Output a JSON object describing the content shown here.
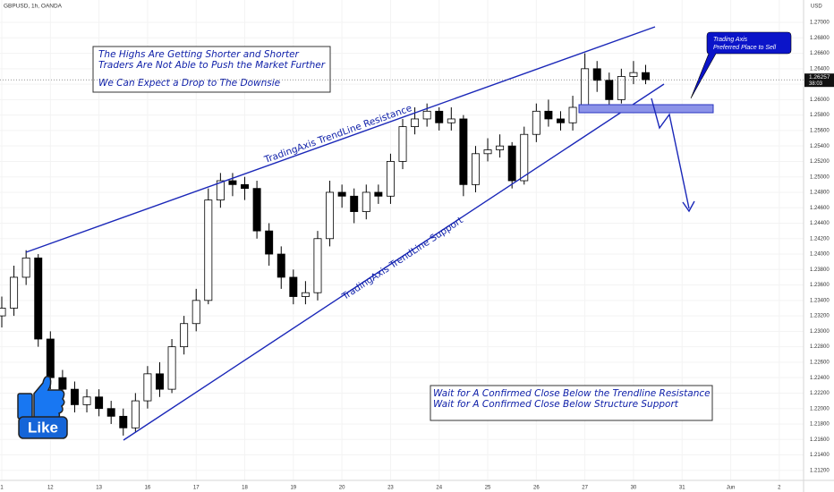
{
  "chart_data": {
    "type": "candlestick",
    "symbol": "GBPUSD, 1h, OANDA",
    "currency": "USD",
    "up_color": "#ffffff",
    "down_color": "#000000",
    "grid": true,
    "x": [
      0,
      0.25,
      0.5,
      0.75,
      1,
      1.25,
      1.5,
      1.75,
      2,
      2.25,
      2.5,
      2.75,
      3,
      3.25,
      3.5,
      3.75,
      4,
      4.25,
      4.5,
      4.75,
      5,
      5.25,
      5.5,
      5.75,
      6,
      6.25,
      6.5,
      6.75,
      7,
      7.25,
      7.5,
      7.75,
      8,
      8.25,
      8.5,
      8.75,
      9,
      9.25,
      9.5,
      9.75,
      10,
      10.25,
      10.5,
      10.75,
      11,
      11.25,
      11.5,
      11.75,
      12,
      12.25,
      12.5,
      12.75,
      13,
      13.25
    ],
    "open": [
      1.232,
      1.233,
      1.237,
      1.2395,
      1.229,
      1.224,
      1.2225,
      1.2205,
      1.2215,
      1.22,
      1.219,
      1.2175,
      1.221,
      1.2245,
      1.2225,
      1.228,
      1.231,
      1.234,
      1.247,
      1.2495,
      1.249,
      1.2485,
      1.243,
      1.24,
      1.237,
      1.2345,
      1.235,
      1.242,
      1.248,
      1.2475,
      1.2455,
      1.248,
      1.2475,
      1.252,
      1.2565,
      1.2575,
      1.2585,
      1.257,
      1.2575,
      1.249,
      1.253,
      1.2535,
      1.254,
      1.2495,
      1.2555,
      1.2585,
      1.2575,
      1.257,
      1.259,
      1.264,
      1.2625,
      1.26,
      1.263,
      1.2635
    ],
    "high": [
      1.2345,
      1.2385,
      1.2405,
      1.24,
      1.23,
      1.225,
      1.2235,
      1.2225,
      1.2225,
      1.221,
      1.22,
      1.222,
      1.2255,
      1.226,
      1.229,
      1.232,
      1.2355,
      1.2485,
      1.2505,
      1.2505,
      1.25,
      1.2495,
      1.244,
      1.241,
      1.238,
      1.2365,
      1.243,
      1.2495,
      1.249,
      1.2485,
      1.249,
      1.249,
      1.253,
      1.2575,
      1.259,
      1.2595,
      1.259,
      1.259,
      1.258,
      1.254,
      1.255,
      1.2555,
      1.2545,
      1.2565,
      1.2595,
      1.26,
      1.2585,
      1.2605,
      1.266,
      1.265,
      1.2635,
      1.264,
      1.265,
      1.2645
    ],
    "low": [
      1.2305,
      1.232,
      1.236,
      1.228,
      1.2225,
      1.221,
      1.2195,
      1.2195,
      1.219,
      1.218,
      1.2165,
      1.217,
      1.22,
      1.2215,
      1.222,
      1.227,
      1.23,
      1.2335,
      1.246,
      1.2475,
      1.247,
      1.242,
      1.2385,
      1.2355,
      1.2335,
      1.2335,
      1.234,
      1.241,
      1.246,
      1.244,
      1.2445,
      1.2465,
      1.2465,
      1.251,
      1.2555,
      1.2565,
      1.256,
      1.256,
      1.2475,
      1.248,
      1.252,
      1.2525,
      1.2485,
      1.249,
      1.2545,
      1.2565,
      1.256,
      1.256,
      1.2585,
      1.261,
      1.259,
      1.2595,
      1.262,
      1.262
    ],
    "close": [
      1.233,
      1.237,
      1.2395,
      1.229,
      1.224,
      1.2225,
      1.2205,
      1.2215,
      1.22,
      1.219,
      1.2175,
      1.221,
      1.2245,
      1.2225,
      1.228,
      1.231,
      1.234,
      1.247,
      1.2495,
      1.249,
      1.2485,
      1.243,
      1.24,
      1.237,
      1.2345,
      1.235,
      1.242,
      1.248,
      1.2475,
      1.2455,
      1.248,
      1.2475,
      1.252,
      1.2565,
      1.2575,
      1.2585,
      1.257,
      1.2575,
      1.249,
      1.253,
      1.2535,
      1.254,
      1.2495,
      1.2555,
      1.2585,
      1.2575,
      1.257,
      1.259,
      1.264,
      1.2625,
      1.26,
      1.263,
      1.2635,
      1.26257
    ],
    "xlim": [
      -0.037,
      16.5
    ],
    "xticks": [
      {
        "value": 0,
        "label": "1"
      },
      {
        "value": 1,
        "label": "12"
      },
      {
        "value": 2,
        "label": "13"
      },
      {
        "value": 3,
        "label": "16"
      },
      {
        "value": 4,
        "label": "17"
      },
      {
        "value": 5,
        "label": "18"
      },
      {
        "value": 6,
        "label": "19"
      },
      {
        "value": 7,
        "label": "20"
      },
      {
        "value": 8,
        "label": "23"
      },
      {
        "value": 9,
        "label": "24"
      },
      {
        "value": 10,
        "label": "25"
      },
      {
        "value": 11,
        "label": "26"
      },
      {
        "value": 12,
        "label": "27"
      },
      {
        "value": 13,
        "label": "30"
      },
      {
        "value": 14,
        "label": "31"
      },
      {
        "value": 15,
        "label": "Jun"
      },
      {
        "value": 16,
        "label": "2"
      }
    ],
    "ylim": [
      1.2107,
      1.2729
    ],
    "yticks": [
      {
        "value": 1.212,
        "label": "1.21200"
      },
      {
        "value": 1.214,
        "label": "1.21400"
      },
      {
        "value": 1.216,
        "label": "1.21600"
      },
      {
        "value": 1.218,
        "label": "1.21800"
      },
      {
        "value": 1.22,
        "label": "1.22000"
      },
      {
        "value": 1.222,
        "label": "1.22200"
      },
      {
        "value": 1.224,
        "label": "1.22400"
      },
      {
        "value": 1.226,
        "label": "1.22600"
      },
      {
        "value": 1.228,
        "label": "1.22800"
      },
      {
        "value": 1.23,
        "label": "1.23000"
      },
      {
        "value": 1.232,
        "label": "1.23200"
      },
      {
        "value": 1.234,
        "label": "1.23400"
      },
      {
        "value": 1.236,
        "label": "1.23600"
      },
      {
        "value": 1.238,
        "label": "1.23800"
      },
      {
        "value": 1.24,
        "label": "1.24000"
      },
      {
        "value": 1.242,
        "label": "1.24200"
      },
      {
        "value": 1.244,
        "label": "1.24400"
      },
      {
        "value": 1.246,
        "label": "1.24600"
      },
      {
        "value": 1.248,
        "label": "1.24800"
      },
      {
        "value": 1.25,
        "label": "1.25000"
      },
      {
        "value": 1.252,
        "label": "1.25200"
      },
      {
        "value": 1.254,
        "label": "1.25400"
      },
      {
        "value": 1.256,
        "label": "1.25600"
      },
      {
        "value": 1.258,
        "label": "1.25800"
      },
      {
        "value": 1.26,
        "label": "1.26000"
      },
      {
        "value": 1.262,
        "label": "1.26200"
      },
      {
        "value": 1.264,
        "label": "1.26400"
      },
      {
        "value": 1.266,
        "label": "1.26600"
      },
      {
        "value": 1.268,
        "label": "1.26800"
      },
      {
        "value": 1.27,
        "label": "1.27000"
      }
    ],
    "last_price": {
      "value": 1.26257,
      "label": "1.26257"
    },
    "countdown": "38:03",
    "annotations": {
      "top_box": [
        "The Highs Are Getting Shorter and Shorter",
        "Traders Are Not Able to Push the Market Further",
        "We Can Expect a Drop to The Downsie"
      ],
      "bottom_box": [
        "Wait for A Confirmed Close Below the Trendline Resistance",
        "Wait for A Confirmed Close Below Structure Support"
      ],
      "callout": [
        "Trading Axis",
        "Preferred Place to Sell"
      ],
      "resistance_label": "TradingAxis TrendLine Resistance",
      "support_label": "TradingAxis TrendLine Support",
      "like": "Like"
    }
  }
}
